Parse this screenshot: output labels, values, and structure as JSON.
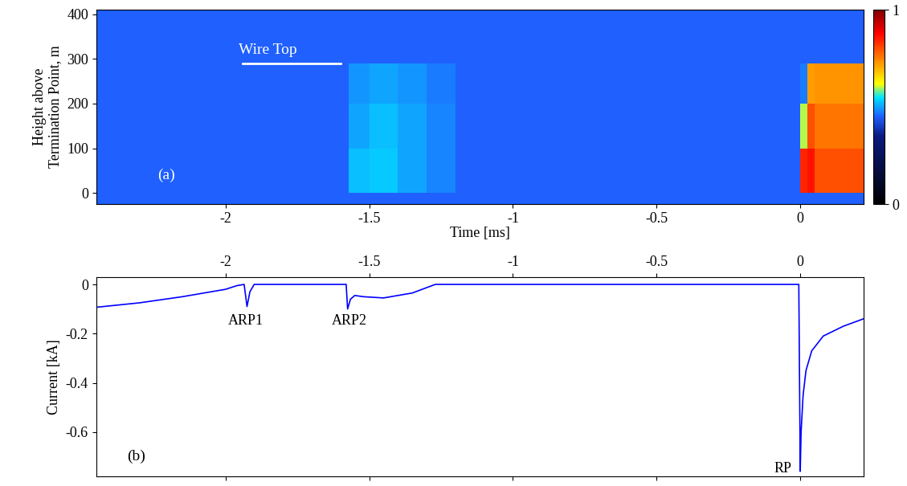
{
  "chart_data": [
    {
      "type": "heatmap",
      "panel_label": "(a)",
      "x_label": "Time [ms]",
      "y_label": "Height above\nTermination Point, m",
      "xlim": [
        -2.45,
        0.22
      ],
      "ylim": [
        -25,
        410
      ],
      "xticks": [
        -2,
        -1.5,
        -1,
        -0.5,
        0
      ],
      "yticks": [
        0,
        100,
        200,
        300,
        400
      ],
      "x_edges": [
        -2.45,
        -1.57,
        -1.5,
        -1.4,
        -1.3,
        -1.2,
        0,
        0.025,
        0.05,
        0.22
      ],
      "y_edges": [
        -25,
        0,
        100,
        200,
        290,
        410
      ],
      "cells": [
        [
          0.45,
          0.45,
          0.45,
          0.45,
          0.45,
          0.45,
          0.45,
          0.45,
          0.45
        ],
        [
          0.45,
          0.52,
          0.53,
          0.5,
          0.48,
          0.45,
          0.84,
          0.86,
          0.8
        ],
        [
          0.45,
          0.5,
          0.52,
          0.5,
          0.48,
          0.45,
          0.6,
          0.8,
          0.76
        ],
        [
          0.45,
          0.49,
          0.5,
          0.49,
          0.47,
          0.45,
          0.47,
          0.72,
          0.73
        ],
        [
          0.45,
          0.45,
          0.45,
          0.45,
          0.45,
          0.45,
          0.45,
          0.45,
          0.45
        ]
      ],
      "colorbar": {
        "range": [
          0,
          1
        ],
        "ticks": [
          0,
          1
        ]
      },
      "annotations": [
        {
          "text": "Wire Top",
          "x": [
            -1.94,
            -1.6
          ],
          "y": 290
        }
      ]
    },
    {
      "type": "line",
      "panel_label": "(b)",
      "y_label": "Current [kA]",
      "color": "#0000ff",
      "xlim": [
        -2.45,
        0.22
      ],
      "ylim": [
        -0.78,
        0.03
      ],
      "xticks": [
        -2,
        -1.5,
        -1,
        -0.5,
        0
      ],
      "yticks": [
        -0.6,
        -0.4,
        -0.2,
        0
      ],
      "x": [
        -2.45,
        -2.3,
        -2.15,
        -2.0,
        -1.96,
        -1.935,
        -1.925,
        -1.915,
        -1.9,
        -1.6,
        -1.58,
        -1.575,
        -1.565,
        -1.55,
        -1.52,
        -1.45,
        -1.35,
        -1.27,
        -1.0,
        -0.5,
        -0.005,
        0.0,
        0.003,
        0.01,
        0.02,
        0.04,
        0.08,
        0.15,
        0.22
      ],
      "values": [
        -0.093,
        -0.075,
        -0.05,
        -0.02,
        -0.005,
        0.0,
        -0.09,
        -0.03,
        0.0,
        0.0,
        0.0,
        -0.1,
        -0.06,
        -0.045,
        -0.05,
        -0.055,
        -0.035,
        0.0,
        0.0,
        0.0,
        0.0,
        -0.76,
        -0.6,
        -0.45,
        -0.35,
        -0.27,
        -0.21,
        -0.17,
        -0.14
      ],
      "annotations": [
        {
          "text": "ARP1",
          "x": -1.93,
          "y": -0.12
        },
        {
          "text": "ARP2",
          "x": -1.57,
          "y": -0.12
        },
        {
          "text": "RP",
          "x": -0.03,
          "y": -0.72
        }
      ]
    }
  ]
}
